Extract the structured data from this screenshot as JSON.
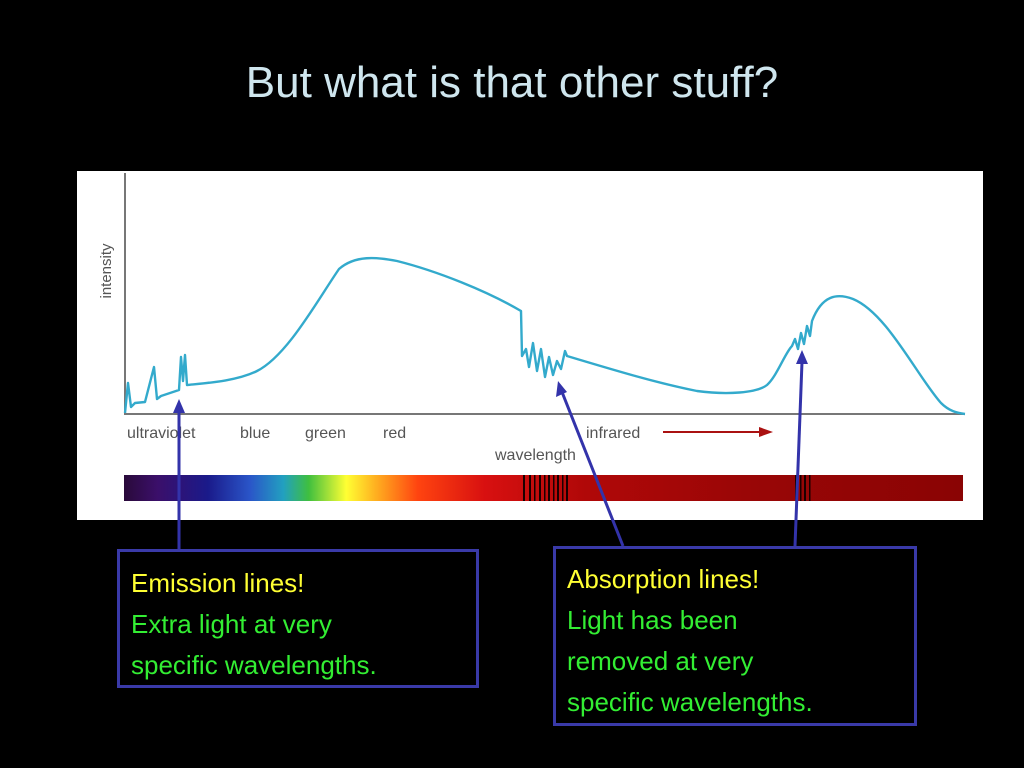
{
  "slide": {
    "title": "But what is that other stuff?"
  },
  "figure": {
    "y_axis_label": "intensity",
    "x_axis_label": "wavelength",
    "band_labels": [
      "ultraviolet",
      "blue",
      "green",
      "red",
      "infrared"
    ],
    "curve_color": "#33aacc",
    "axis_color": "#777777",
    "infrared_arrow_color": "#aa1111"
  },
  "callouts": {
    "emission": {
      "heading": "Emission lines!",
      "line1": "Extra light at very",
      "line2": "specific wavelengths."
    },
    "absorption": {
      "heading": "Absorption lines!",
      "line1": "Light has been",
      "line2": "removed at very",
      "line3": "specific wavelengths."
    }
  },
  "colors": {
    "background": "#000000",
    "title": "#cfe6ee",
    "callout_heading": "#ffff33",
    "callout_body": "#33ee33",
    "callout_border": "#3a3aa8",
    "pointer_arrows": "#3333aa"
  }
}
